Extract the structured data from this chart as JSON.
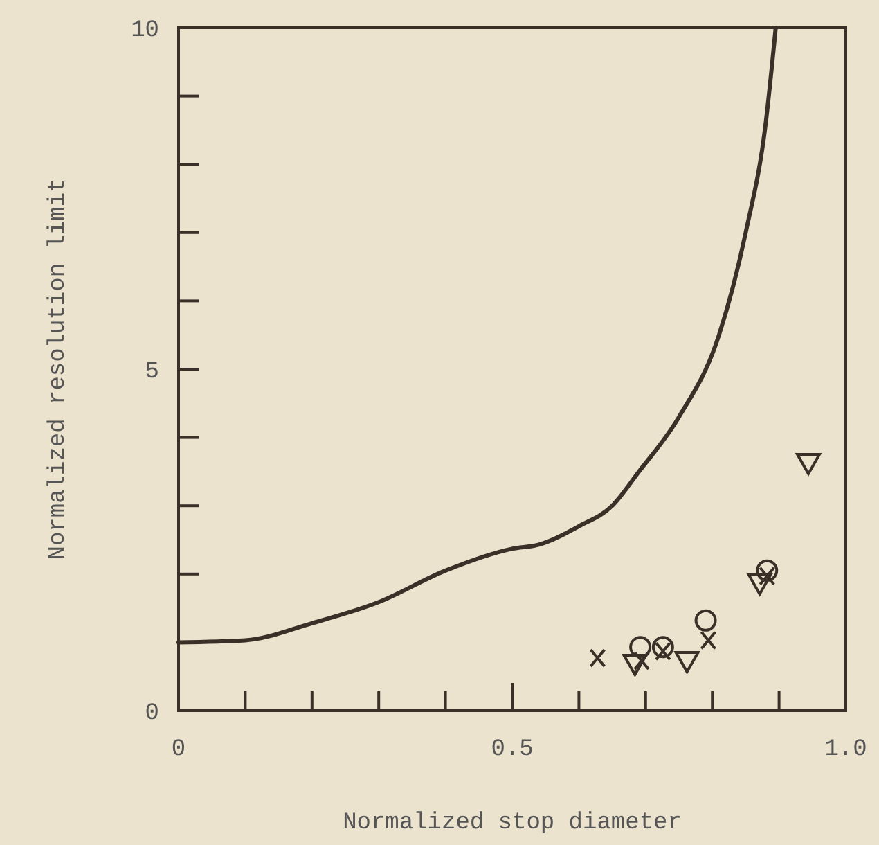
{
  "chart_data": {
    "type": "line",
    "xlabel": "Normalized stop diameter",
    "ylabel": "Normalized resolution limit",
    "xlim": [
      0,
      1
    ],
    "ylim": [
      0,
      10
    ],
    "xticks": [
      0,
      {
        "value": 0.1,
        "label": null
      },
      {
        "value": 0.2,
        "label": null
      },
      {
        "value": 0.3,
        "label": null
      },
      {
        "value": 0.4,
        "label": null
      },
      0.5,
      {
        "value": 0.6,
        "label": null
      },
      {
        "value": 0.7,
        "label": null
      },
      {
        "value": 0.8,
        "label": null
      },
      {
        "value": 0.9,
        "label": null
      },
      {
        "value": 1,
        "label": "1.0"
      }
    ],
    "yticks": [
      0,
      {
        "value": 1,
        "label": null
      },
      {
        "value": 2,
        "label": null
      },
      {
        "value": 3,
        "label": null
      },
      {
        "value": 4,
        "label": null
      },
      5,
      {
        "value": 6,
        "label": null
      },
      {
        "value": 7,
        "label": null
      },
      {
        "value": 8,
        "label": null
      },
      {
        "value": 9,
        "label": null
      },
      10
    ],
    "grid": false,
    "series": [
      {
        "color": "#3a3028",
        "marker": "none",
        "line_style": "solid",
        "x": [
          0,
          0.1,
          0.2,
          0.3,
          0.4,
          0.5,
          0.54,
          0.6,
          0.65,
          0.69,
          0.75,
          0.81,
          0.85,
          0.88,
          0.895
        ],
        "values": [
          1.0,
          1.03,
          1.28,
          1.59,
          2.05,
          2.37,
          2.43,
          2.7,
          3.0,
          3.5,
          4.3,
          5.5,
          7.0,
          8.6,
          10
        ]
      },
      {
        "type": "scatter",
        "color": "#3a3028",
        "marker": "cross",
        "x": [
          0.628,
          0.694,
          0.726,
          0.794,
          0.882
        ],
        "values": [
          0.77,
          0.73,
          0.87,
          1.03,
          1.97
        ]
      },
      {
        "type": "scatter",
        "color": "#3a3028",
        "marker": "circle",
        "x": [
          0.692,
          0.726,
          0.79,
          0.882
        ],
        "values": [
          0.93,
          0.93,
          1.32,
          2.05
        ]
      },
      {
        "type": "scatter",
        "color": "#3a3028",
        "marker": "triangle",
        "x": [
          0.684,
          0.762,
          0.871,
          0.944
        ],
        "values": [
          0.69,
          0.73,
          1.87,
          3.63
        ]
      }
    ]
  }
}
